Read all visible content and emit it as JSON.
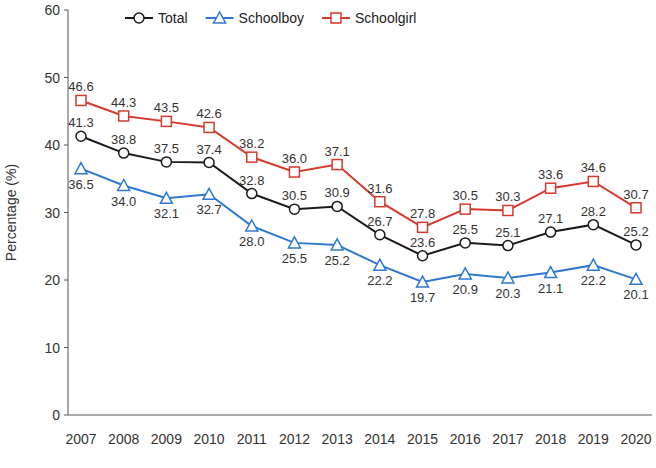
{
  "chart_data": {
    "type": "line",
    "y_label": "Percentage (%)",
    "categories": [
      "2007",
      "2008",
      "2009",
      "2010",
      "2011",
      "2012",
      "2013",
      "2014",
      "2015",
      "2016",
      "2017",
      "2018",
      "2019",
      "2020"
    ],
    "series": [
      {
        "name": "Total",
        "color": "#1a1a1a",
        "marker": "circle",
        "values": [
          41.3,
          38.8,
          37.5,
          37.4,
          32.8,
          30.5,
          30.9,
          26.7,
          23.6,
          25.5,
          25.1,
          27.1,
          28.2,
          25.2
        ],
        "value_labels": [
          "41.3",
          "38.8",
          "37.5",
          "37.4",
          "32.8",
          "30.5",
          "30.9",
          "26.7",
          "23.6",
          "25.5",
          "25.1",
          "27.1",
          "28.2",
          "25.2"
        ]
      },
      {
        "name": "Schoolboy",
        "color": "#2f78d2",
        "marker": "triangle",
        "values": [
          36.5,
          34.0,
          32.1,
          32.7,
          28.0,
          25.5,
          25.2,
          22.2,
          19.7,
          20.9,
          20.3,
          21.1,
          22.2,
          20.1
        ],
        "value_labels": [
          "36.5",
          "34.0",
          "32.1",
          "32.7",
          "28.0",
          "25.5",
          "25.2",
          "22.2",
          "19.7",
          "20.9",
          "20.3",
          "21.1",
          "22.2",
          "20.1"
        ]
      },
      {
        "name": "Schoolgirl",
        "color": "#d63a2e",
        "marker": "square",
        "values": [
          46.6,
          44.3,
          43.5,
          42.6,
          38.2,
          36.0,
          37.1,
          31.6,
          27.8,
          30.5,
          30.3,
          33.6,
          34.6,
          30.7
        ],
        "value_labels": [
          "46.6",
          "44.3",
          "43.5",
          "42.6",
          "38.2",
          "36.0",
          "37.1",
          "31.6",
          "27.8",
          "30.5",
          "30.3",
          "33.6",
          "34.6",
          "30.7"
        ]
      }
    ],
    "ylim": [
      0,
      60
    ],
    "yticks": [
      0,
      10,
      20,
      30,
      40,
      50,
      60
    ],
    "grid": false,
    "legend": "top-left",
    "data_labels": true
  }
}
